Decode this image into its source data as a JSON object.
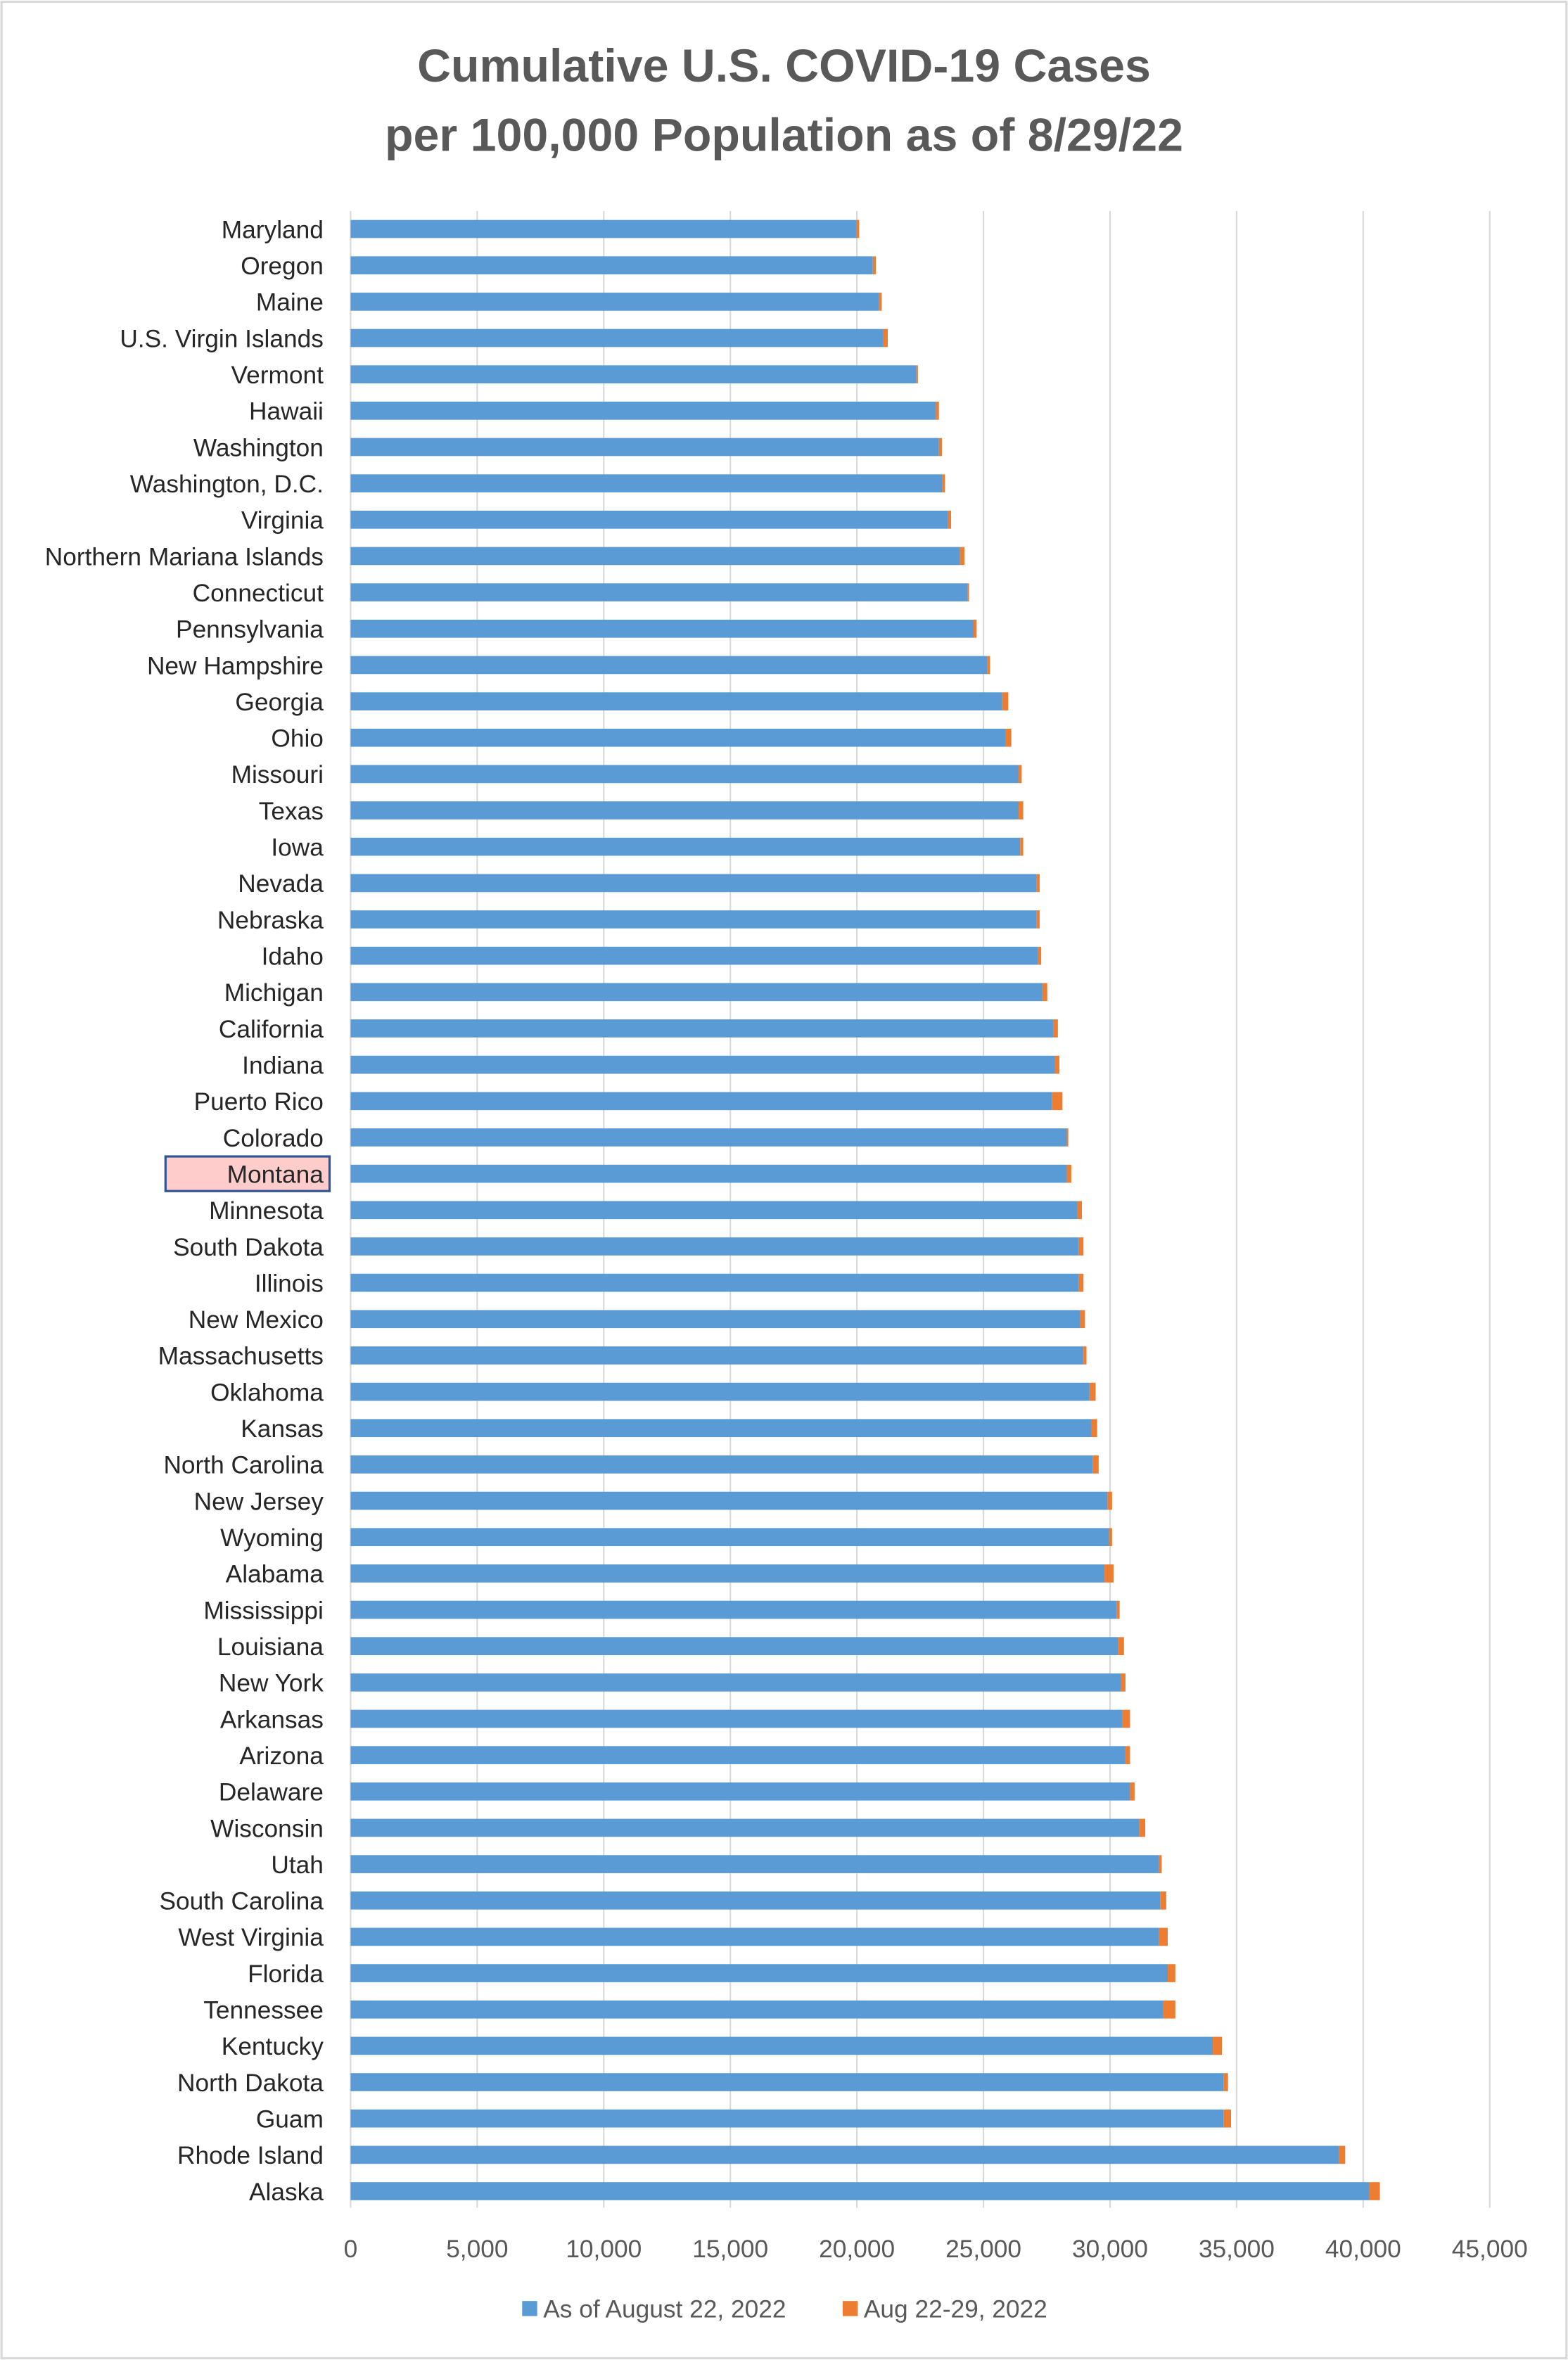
{
  "chart_data": {
    "type": "bar",
    "orientation": "horizontal",
    "stacked": true,
    "title": "Cumulative U.S. COVID-19 Cases per 100,000 Population as of 8/29/22",
    "title_lines": [
      "Cumulative U.S. COVID-19 Cases",
      "per 100,000 Population as of 8/29/22"
    ],
    "xlabel": "",
    "ylabel": "",
    "xlim": [
      0,
      45000
    ],
    "xticks": [
      0,
      5000,
      10000,
      15000,
      20000,
      25000,
      30000,
      35000,
      40000,
      45000
    ],
    "xtick_labels": [
      "0",
      "5,000",
      "10,000",
      "15,000",
      "20,000",
      "25,000",
      "30,000",
      "35,000",
      "40,000",
      "45,000"
    ],
    "grid": "vertical",
    "legend_position": "bottom",
    "highlighted_category": "Montana",
    "categories": [
      "Maryland",
      "Oregon",
      "Maine",
      "U.S. Virgin Islands",
      "Vermont",
      "Hawaii",
      "Washington",
      "Washington, D.C.",
      "Virginia",
      "Northern Mariana Islands",
      "Connecticut",
      "Pennsylvania",
      "New Hampshire",
      "Georgia",
      "Ohio",
      "Missouri",
      "Texas",
      "Iowa",
      "Nevada",
      "Nebraska",
      "Idaho",
      "Michigan",
      "California",
      "Indiana",
      "Puerto Rico",
      "Colorado",
      "Montana",
      "Minnesota",
      "South Dakota",
      "Illinois",
      "New Mexico",
      "Massachusetts",
      "Oklahoma",
      "Kansas",
      "North Carolina",
      "New Jersey",
      "Wyoming",
      "Alabama",
      "Mississippi",
      "Louisiana",
      "New York",
      "Arkansas",
      "Arizona",
      "Delaware",
      "Wisconsin",
      "Utah",
      "South Carolina",
      "West Virginia",
      "Florida",
      "Tennessee",
      "Kentucky",
      "North Dakota",
      "Guam",
      "Rhode Island",
      "Alaska"
    ],
    "series": [
      {
        "name": "As of August 22, 2022",
        "color": "#5b9bd5",
        "values": [
          19970,
          20630,
          20860,
          21040,
          22350,
          23120,
          23240,
          23360,
          23600,
          24070,
          24370,
          24610,
          25140,
          25740,
          25860,
          26390,
          26390,
          26450,
          27100,
          27100,
          27160,
          27340,
          27760,
          27820,
          27700,
          28290,
          28290,
          28710,
          28770,
          28770,
          28830,
          28950,
          29190,
          29250,
          29310,
          29900,
          29960,
          29780,
          30260,
          30310,
          30430,
          30490,
          30610,
          30790,
          31150,
          31920,
          31980,
          31920,
          32280,
          32100,
          34060,
          34480,
          34480,
          39050,
          40240
        ]
      },
      {
        "name": "Aug 22-29, 2022",
        "color": "#ed7d31",
        "values": [
          120,
          120,
          120,
          180,
          60,
          120,
          120,
          120,
          120,
          180,
          60,
          120,
          120,
          240,
          240,
          120,
          180,
          120,
          120,
          120,
          120,
          180,
          180,
          180,
          420,
          60,
          180,
          180,
          180,
          180,
          180,
          120,
          240,
          240,
          240,
          180,
          120,
          360,
          120,
          240,
          180,
          300,
          180,
          180,
          240,
          120,
          240,
          360,
          300,
          480,
          360,
          180,
          300,
          240,
          420
        ]
      }
    ]
  }
}
